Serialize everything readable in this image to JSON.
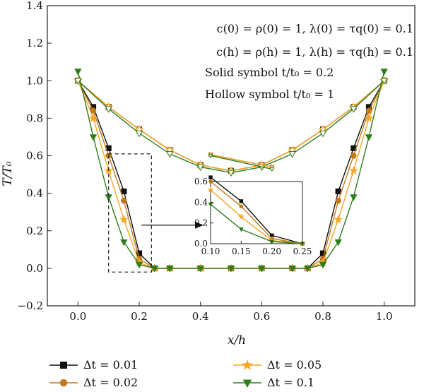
{
  "chart_data": {
    "type": "line",
    "xlabel": "x/h",
    "ylabel": "T/T₀",
    "xlim": [
      -0.1,
      1.1
    ],
    "ylim": [
      -0.2,
      1.4
    ],
    "xticks": [
      "0.0",
      "0.2",
      "0.4",
      "0.6",
      "0.8",
      "1.0"
    ],
    "yticks": [
      "−0.2",
      "0.0",
      "0.2",
      "0.4",
      "0.6",
      "0.8",
      "1.0",
      "1.2",
      "1.4"
    ],
    "annotations": [
      "c(0) = ρ(0) = 1, λ(0) = τq(0) = 0.1",
      "c(h) = ρ(h) = 1, λ(h) = τq(h) = 0.1",
      "Solid symbol t/t₀ = 0.2",
      "Hollow symbol t/t₀ = 1"
    ],
    "legend_position": "bottom",
    "series": [
      {
        "name": "Δt = 0.01",
        "color": "#111111",
        "marker": "square",
        "solid": {
          "x": [
            0.0,
            0.05,
            0.1,
            0.15,
            0.2,
            0.25,
            0.3,
            0.4,
            0.5,
            0.6,
            0.7,
            0.75,
            0.8,
            0.85,
            0.9,
            0.95,
            1.0
          ],
          "y": [
            1.0,
            0.86,
            0.64,
            0.41,
            0.08,
            0.0,
            0.0,
            0.0,
            0.0,
            0.0,
            0.0,
            0.0,
            0.08,
            0.41,
            0.64,
            0.86,
            1.0
          ]
        },
        "hollow": {
          "x": [
            0.0,
            0.1,
            0.2,
            0.3,
            0.4,
            0.5,
            0.6,
            0.7,
            0.8,
            0.9,
            1.0
          ],
          "y": [
            1.0,
            0.86,
            0.74,
            0.63,
            0.55,
            0.52,
            0.55,
            0.63,
            0.74,
            0.86,
            1.0
          ]
        }
      },
      {
        "name": "Δt = 0.02",
        "color": "#c07a1c",
        "marker": "circle",
        "solid": {
          "x": [
            0.0,
            0.05,
            0.1,
            0.15,
            0.2,
            0.25,
            0.3,
            0.4,
            0.5,
            0.6,
            0.7,
            0.75,
            0.8,
            0.85,
            0.9,
            0.95,
            1.0
          ],
          "y": [
            1.0,
            0.84,
            0.6,
            0.36,
            0.05,
            0.0,
            0.0,
            0.0,
            0.0,
            0.0,
            0.0,
            0.0,
            0.05,
            0.36,
            0.6,
            0.84,
            1.0
          ]
        },
        "hollow": {
          "x": [
            0.0,
            0.1,
            0.2,
            0.3,
            0.4,
            0.5,
            0.6,
            0.7,
            0.8,
            0.9,
            1.0
          ],
          "y": [
            1.0,
            0.86,
            0.74,
            0.63,
            0.55,
            0.52,
            0.55,
            0.63,
            0.74,
            0.86,
            1.0
          ]
        }
      },
      {
        "name": "Δt = 0.05",
        "color": "#f5a623",
        "marker": "star",
        "solid": {
          "x": [
            0.0,
            0.05,
            0.1,
            0.15,
            0.2,
            0.25,
            0.3,
            0.4,
            0.5,
            0.6,
            0.7,
            0.75,
            0.8,
            0.85,
            0.9,
            0.95,
            1.0
          ],
          "y": [
            1.0,
            0.8,
            0.52,
            0.26,
            0.03,
            0.0,
            0.0,
            0.0,
            0.0,
            0.0,
            0.0,
            0.0,
            0.03,
            0.26,
            0.52,
            0.8,
            1.0
          ]
        },
        "hollow": {
          "x": [
            0.0,
            0.1,
            0.2,
            0.3,
            0.4,
            0.5,
            0.6,
            0.7,
            0.8,
            0.9,
            1.0
          ],
          "y": [
            1.0,
            0.86,
            0.74,
            0.63,
            0.55,
            0.52,
            0.55,
            0.63,
            0.74,
            0.86,
            1.0
          ]
        }
      },
      {
        "name": "Δt = 0.1",
        "color": "#2e7d1c",
        "marker": "triangle-down",
        "solid": {
          "x": [
            0.0,
            0.05,
            0.1,
            0.15,
            0.2,
            0.25,
            0.3,
            0.4,
            0.5,
            0.6,
            0.7,
            0.75,
            0.8,
            0.85,
            0.9,
            0.95,
            1.0
          ],
          "y": [
            1.05,
            0.7,
            0.38,
            0.14,
            0.02,
            0.0,
            0.0,
            0.0,
            0.0,
            0.0,
            0.0,
            0.0,
            0.02,
            0.14,
            0.38,
            0.7,
            1.05
          ]
        },
        "hollow": {
          "x": [
            0.0,
            0.1,
            0.2,
            0.3,
            0.4,
            0.5,
            0.6,
            0.7,
            0.8,
            0.9,
            1.0
          ],
          "y": [
            1.0,
            0.85,
            0.72,
            0.61,
            0.54,
            0.51,
            0.54,
            0.61,
            0.72,
            0.85,
            1.0
          ]
        }
      }
    ],
    "inset": {
      "xlim": [
        0.1,
        0.25
      ],
      "ylim": [
        0.0,
        0.6
      ],
      "xticks": [
        "0.10",
        "0.15",
        "0.20",
        "0.25"
      ],
      "yticks": [
        "0.0",
        "0.2",
        "0.4",
        "0.6"
      ],
      "zoom_box_x": [
        0.1,
        0.24
      ],
      "zoom_box_y": [
        -0.02,
        0.61
      ]
    }
  }
}
